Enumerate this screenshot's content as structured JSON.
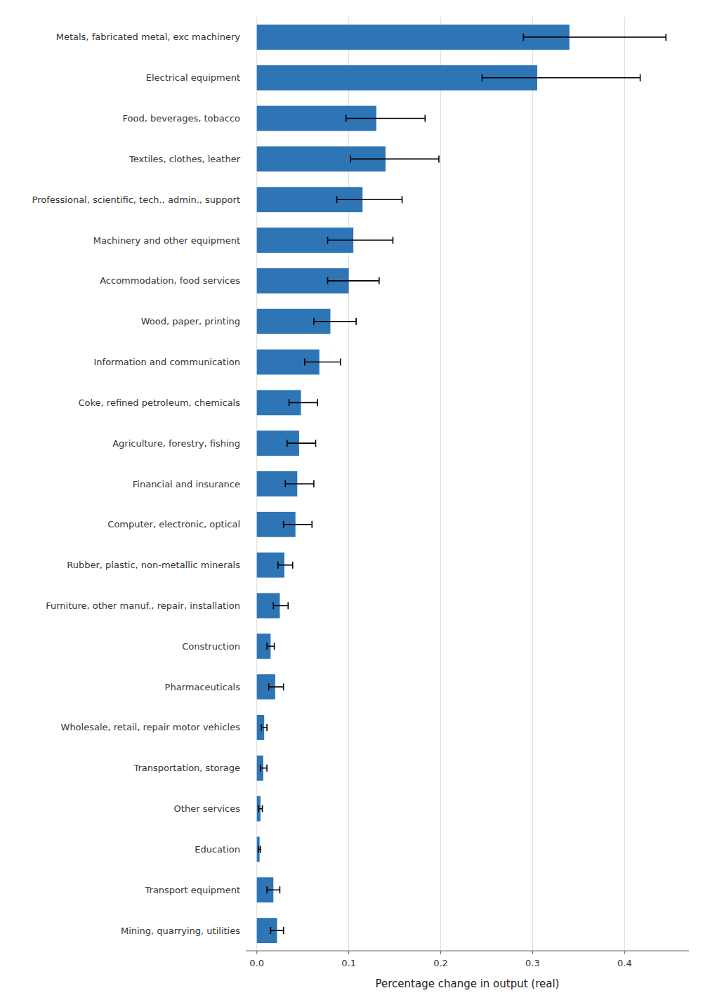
{
  "chart_data": {
    "type": "bar",
    "orientation": "horizontal",
    "categories": [
      "Metals, fabricated metal, exc machinery",
      "Electrical equipment",
      "Food, beverages, tobacco",
      "Textiles, clothes, leather",
      "Professional, scientific, tech., admin., support",
      "Machinery and other equipment",
      "Accommodation, food services",
      "Wood, paper, printing",
      "Information and communication",
      "Coke, refined petroleum, chemicals",
      "Agriculture, forestry, fishing",
      "Financial and insurance",
      "Computer, electronic, optical",
      "Rubber, plastic, non-metallic minerals",
      "Furniture, other manuf., repair, installation",
      "Construction",
      "Pharmaceuticals",
      "Wholesale, retail, repair motor vehicles",
      "Transportation, storage",
      "Other services",
      "Education",
      "Transport equipment",
      "Mining, quarrying, utilities"
    ],
    "values": [
      0.34,
      0.305,
      0.13,
      0.14,
      0.115,
      0.105,
      0.1,
      0.08,
      0.068,
      0.048,
      0.046,
      0.044,
      0.042,
      0.03,
      0.025,
      0.015,
      0.02,
      0.008,
      0.007,
      0.004,
      0.003,
      0.018,
      0.022
    ],
    "err_low": [
      0.05,
      0.06,
      0.033,
      0.038,
      0.028,
      0.028,
      0.023,
      0.018,
      0.016,
      0.013,
      0.013,
      0.013,
      0.013,
      0.007,
      0.007,
      0.004,
      0.007,
      0.003,
      0.003,
      0.002,
      0.001,
      0.007,
      0.007
    ],
    "err_high": [
      0.105,
      0.112,
      0.053,
      0.058,
      0.043,
      0.043,
      0.033,
      0.028,
      0.023,
      0.018,
      0.018,
      0.018,
      0.018,
      0.009,
      0.009,
      0.004,
      0.009,
      0.003,
      0.004,
      0.002,
      0.001,
      0.007,
      0.007
    ],
    "color": "#2E75B6",
    "xlabel": "Percentage change in output (real)",
    "xlim": [
      -0.012,
      0.47
    ],
    "xticks": [
      {
        "value": 0.0,
        "label": "0.0"
      },
      0.1,
      0.2,
      0.3,
      0.4
    ],
    "grid": true
  }
}
